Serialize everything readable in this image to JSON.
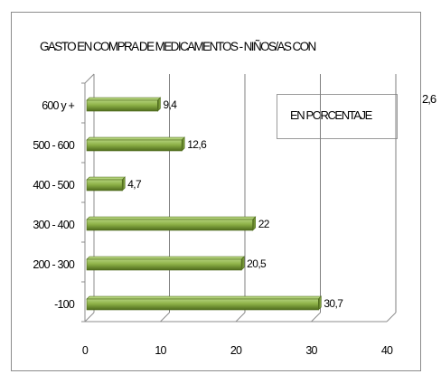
{
  "chart_data": {
    "type": "bar",
    "orientation": "horizontal",
    "title": "GASTO EN COMPRA DE MEDICAMENTOS - NIÑOS/AS CON",
    "legend_label": "EN PORCENTAJE",
    "stray_label": "2,6",
    "categories": [
      "600 y +",
      "500 - 600",
      "400 - 500",
      "300 - 400",
      "200 - 300",
      "-100"
    ],
    "values": [
      9.4,
      12.6,
      4.7,
      22,
      20.5,
      30.7
    ],
    "value_labels": [
      "9,4",
      "12,6",
      "4,7",
      "22",
      "20,5",
      "30,7"
    ],
    "xlim": [
      0,
      40
    ],
    "x_ticks": [
      "0",
      "10",
      "20",
      "30",
      "40"
    ],
    "x_tick_values": [
      0,
      10,
      20,
      30,
      40
    ],
    "grid": true,
    "colors": {
      "bar_light": "#b3d27a",
      "bar_mid": "#8cb046",
      "bar_dark": "#4f6b1d",
      "grid": "#7f7f7f",
      "axis": "#8c8c8c"
    }
  }
}
